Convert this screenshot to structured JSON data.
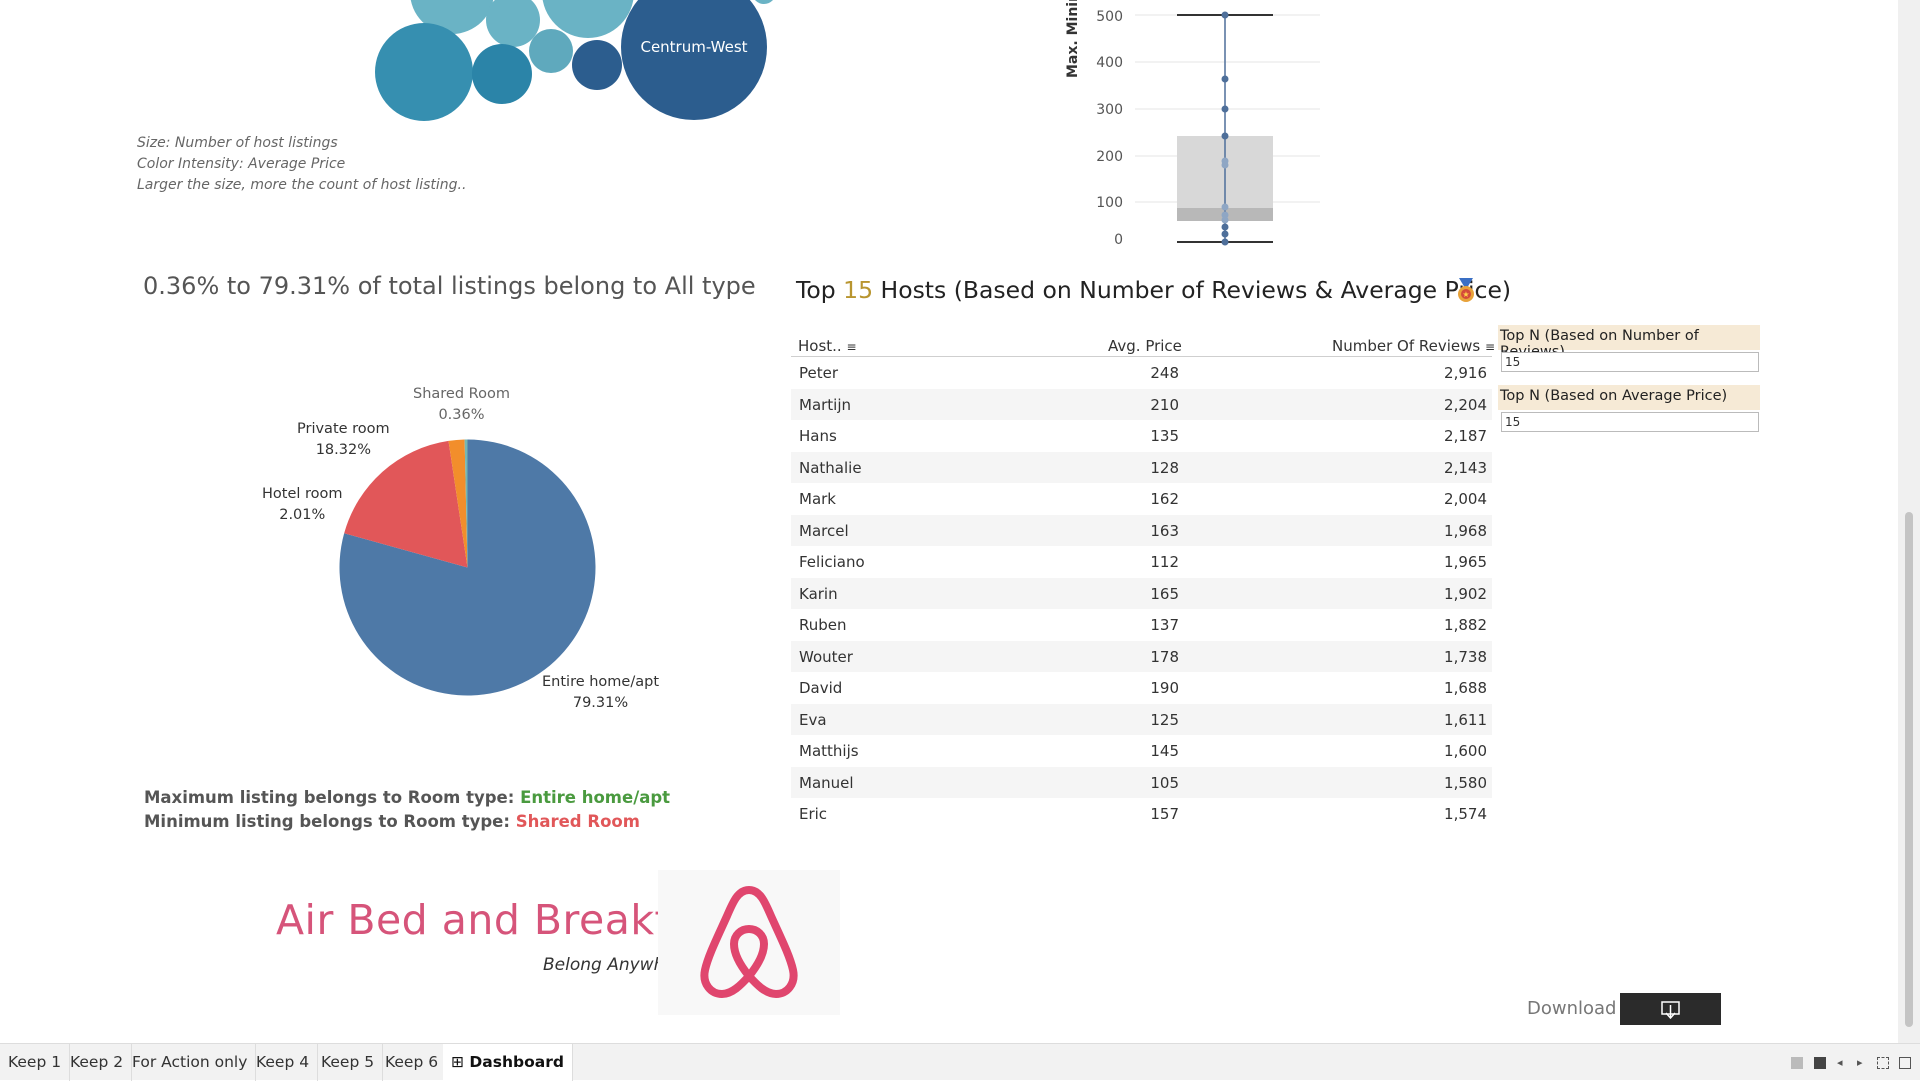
{
  "bubbles": {
    "label_centrum_west": "Centrum-West",
    "notes": [
      "Size: Number of host listings",
      "Color Intensity: Average Price",
      "Larger the size, more the count of host listing.."
    ]
  },
  "boxplot": {
    "y_axis_title": "Max. Minim",
    "ticks": [
      "500",
      "400",
      "300",
      "200",
      "100",
      "0"
    ]
  },
  "pie": {
    "caption": "0.36% to 79.31% of total listings belong to All type",
    "slices": [
      {
        "name": "Entire home/apt",
        "pct": "79.31%",
        "value": 79.31,
        "color": "#4e79a7"
      },
      {
        "name": "Private room",
        "pct": "18.32%",
        "value": 18.32,
        "color": "#e15759"
      },
      {
        "name": "Hotel room",
        "pct": "2.01%",
        "value": 2.01,
        "color": "#f28e2b"
      },
      {
        "name": "Shared Room",
        "pct": "0.36%",
        "value": 0.36,
        "color": "#76b7b2"
      }
    ],
    "max_prefix": "Maximum listing belongs to Room type: ",
    "max_value": "Entire home/apt",
    "min_prefix": "Minimum listing belongs to Room type: ",
    "min_value": "Shared Room"
  },
  "brand": {
    "title": "Air Bed and Breakfast",
    "tagline": "Belong Anywhere",
    "logo_icon": "airbnb-logo-icon"
  },
  "hosts_table": {
    "title_prefix": "Top ",
    "title_n": "15",
    "title_suffix": " Hosts (Based on Number of Reviews & Average Price)",
    "badge_icon": "medal-icon",
    "headers": {
      "host": "Host..",
      "price": "Avg. Price",
      "reviews": "Number Of Reviews"
    },
    "rows": [
      {
        "host": "Peter",
        "price": "248",
        "reviews": "2,916"
      },
      {
        "host": "Martijn",
        "price": "210",
        "reviews": "2,204"
      },
      {
        "host": "Hans",
        "price": "135",
        "reviews": "2,187"
      },
      {
        "host": "Nathalie",
        "price": "128",
        "reviews": "2,143"
      },
      {
        "host": "Mark",
        "price": "162",
        "reviews": "2,004"
      },
      {
        "host": "Marcel",
        "price": "163",
        "reviews": "1,968"
      },
      {
        "host": "Feliciano",
        "price": "112",
        "reviews": "1,965"
      },
      {
        "host": "Karin",
        "price": "165",
        "reviews": "1,902"
      },
      {
        "host": "Ruben",
        "price": "137",
        "reviews": "1,882"
      },
      {
        "host": "Wouter",
        "price": "178",
        "reviews": "1,738"
      },
      {
        "host": "David",
        "price": "190",
        "reviews": "1,688"
      },
      {
        "host": "Eva",
        "price": "125",
        "reviews": "1,611"
      },
      {
        "host": "Matthijs",
        "price": "145",
        "reviews": "1,600"
      },
      {
        "host": "Manuel",
        "price": "105",
        "reviews": "1,580"
      },
      {
        "host": "Eric",
        "price": "157",
        "reviews": "1,574"
      }
    ]
  },
  "params": {
    "reviews_title": "Top N (Based on Number of Reviews)",
    "reviews_value": "15",
    "price_title": "Top N (Based on Average Price)",
    "price_value": "15"
  },
  "download": {
    "label": "Download",
    "icon": "download-icon"
  },
  "tabs": [
    {
      "label": "Keep 1"
    },
    {
      "label": "Keep 2"
    },
    {
      "label": "For Action only"
    },
    {
      "label": "Keep 4"
    },
    {
      "label": "Keep 5"
    },
    {
      "label": "Keep 6"
    },
    {
      "label": "Dashboard",
      "icon": "dashboard-grid-icon",
      "active": true
    }
  ],
  "colors": {
    "accent_pink": "#d6547a",
    "highlight_gold": "#b8952f",
    "max_green": "#4a9a3f",
    "min_red": "#e15759"
  }
}
